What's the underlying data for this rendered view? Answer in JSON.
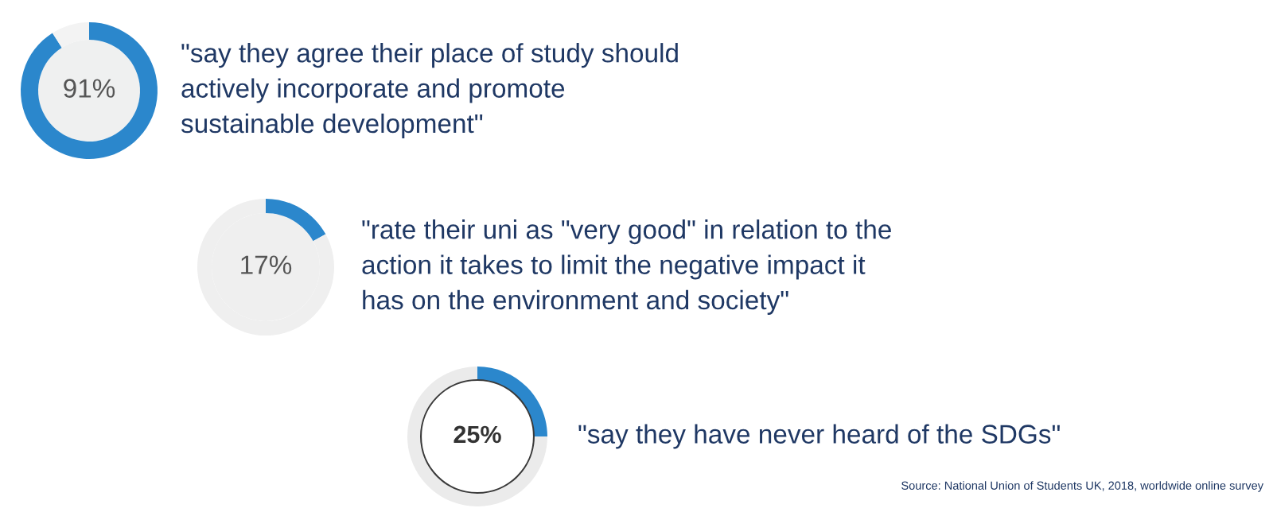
{
  "chart_data": [
    {
      "type": "donut",
      "categories": [
        null,
        null
      ],
      "values": [
        91,
        9
      ],
      "colors": [
        "#2b87cc",
        "#f3f3f3"
      ],
      "value_labels": [
        "91%",
        null
      ],
      "annotations": [
        "\"say they agree their place of study should\nactively incorporate and promote\nsustainable development\""
      ]
    },
    {
      "type": "donut",
      "categories": [
        null,
        null
      ],
      "values": [
        17,
        83
      ],
      "colors": [
        "#2b87cc",
        "#efefef"
      ],
      "value_labels": [
        "17%",
        null
      ],
      "annotations": [
        "\"rate their uni as \"very good\" in relation to the\naction it takes to limit the negative impact it\nhas on the environment and society\""
      ]
    },
    {
      "type": "donut",
      "categories": [
        null,
        null
      ],
      "values": [
        25,
        75
      ],
      "colors": [
        "#2b87cc",
        "#ebebeb"
      ],
      "value_labels": [
        "25%",
        null
      ],
      "annotations": [
        "\"say they have never heard of the SDGs\"",
        "Source: National Union of Students UK, 2018, worldwide online survey"
      ]
    }
  ]
}
